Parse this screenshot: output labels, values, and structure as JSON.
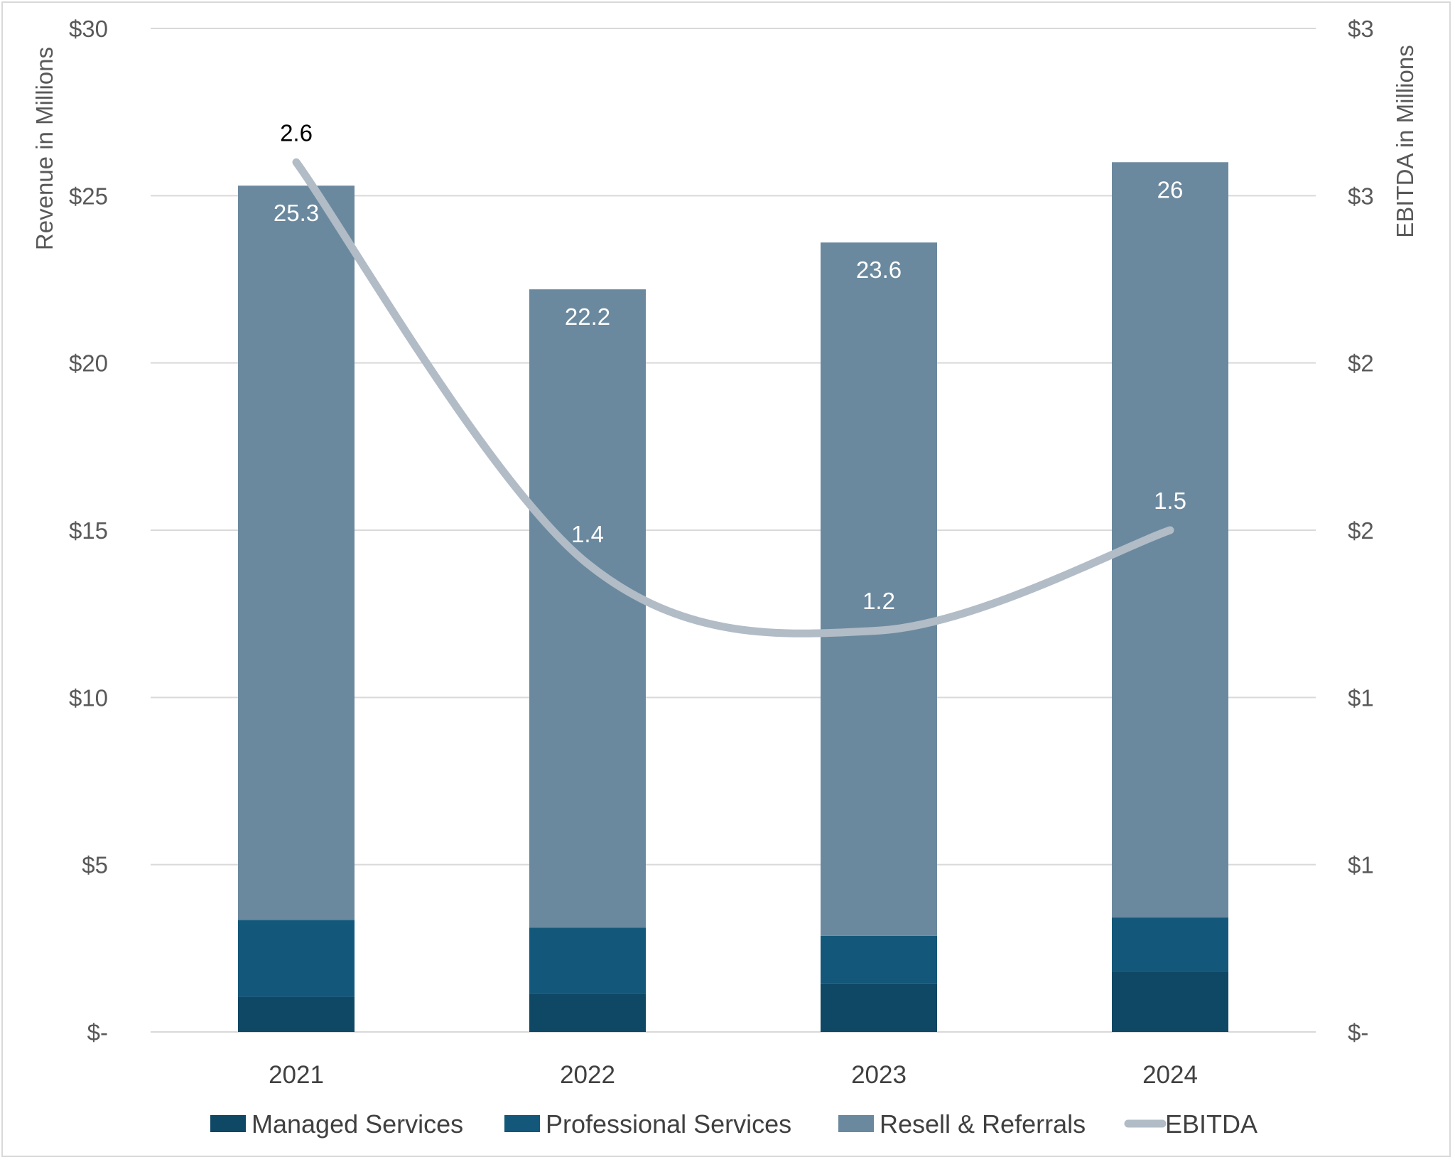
{
  "chart_data": {
    "type": "bar",
    "stacked": true,
    "categories": [
      "2021",
      "2022",
      "2023",
      "2024"
    ],
    "series": [
      {
        "name": "Managed Services",
        "type": "bar",
        "axis": "left",
        "color": "#0f4864",
        "values": [
          1.05,
          1.15,
          1.45,
          1.82
        ]
      },
      {
        "name": "Professional Services",
        "type": "bar",
        "axis": "left",
        "color": "#13587a",
        "values": [
          2.3,
          1.97,
          1.42,
          1.6
        ]
      },
      {
        "name": "Resell & Referrals",
        "type": "bar",
        "axis": "left",
        "color": "#6b899e",
        "values": [
          21.95,
          19.08,
          20.73,
          22.58
        ]
      },
      {
        "name": "EBITDA",
        "type": "line",
        "axis": "right",
        "color": "#b1bcc6",
        "values": [
          2.6,
          1.4,
          1.2,
          1.5
        ]
      }
    ],
    "totals": [
      25.3,
      22.2,
      23.6,
      26
    ],
    "total_labels": [
      "25.3",
      "22.2",
      "23.6",
      "26"
    ],
    "ebitda_labels": [
      "2.6",
      "1.4",
      "1.2",
      "1.5"
    ],
    "left_axis": {
      "label": "Revenue in Millions",
      "range": [
        0,
        30
      ],
      "ticks": [
        0,
        5,
        10,
        15,
        20,
        25,
        30
      ],
      "tick_labels": [
        "$-",
        "$5",
        "$10",
        "$15",
        "$20",
        "$25",
        "$30"
      ]
    },
    "right_axis": {
      "label": "EBITDA in Millions",
      "range": [
        0,
        3
      ],
      "ticks": [
        0,
        0.5,
        1,
        1.5,
        2,
        2.5,
        3
      ],
      "tick_labels": [
        "$-",
        "$1",
        "$1",
        "$2",
        "$2",
        "$3",
        "$3"
      ]
    },
    "grid": true,
    "legend": "bottom",
    "colors": {
      "label_dark": "#000000",
      "label_light": "#ffffff",
      "grid": "#d9d9d9"
    }
  }
}
